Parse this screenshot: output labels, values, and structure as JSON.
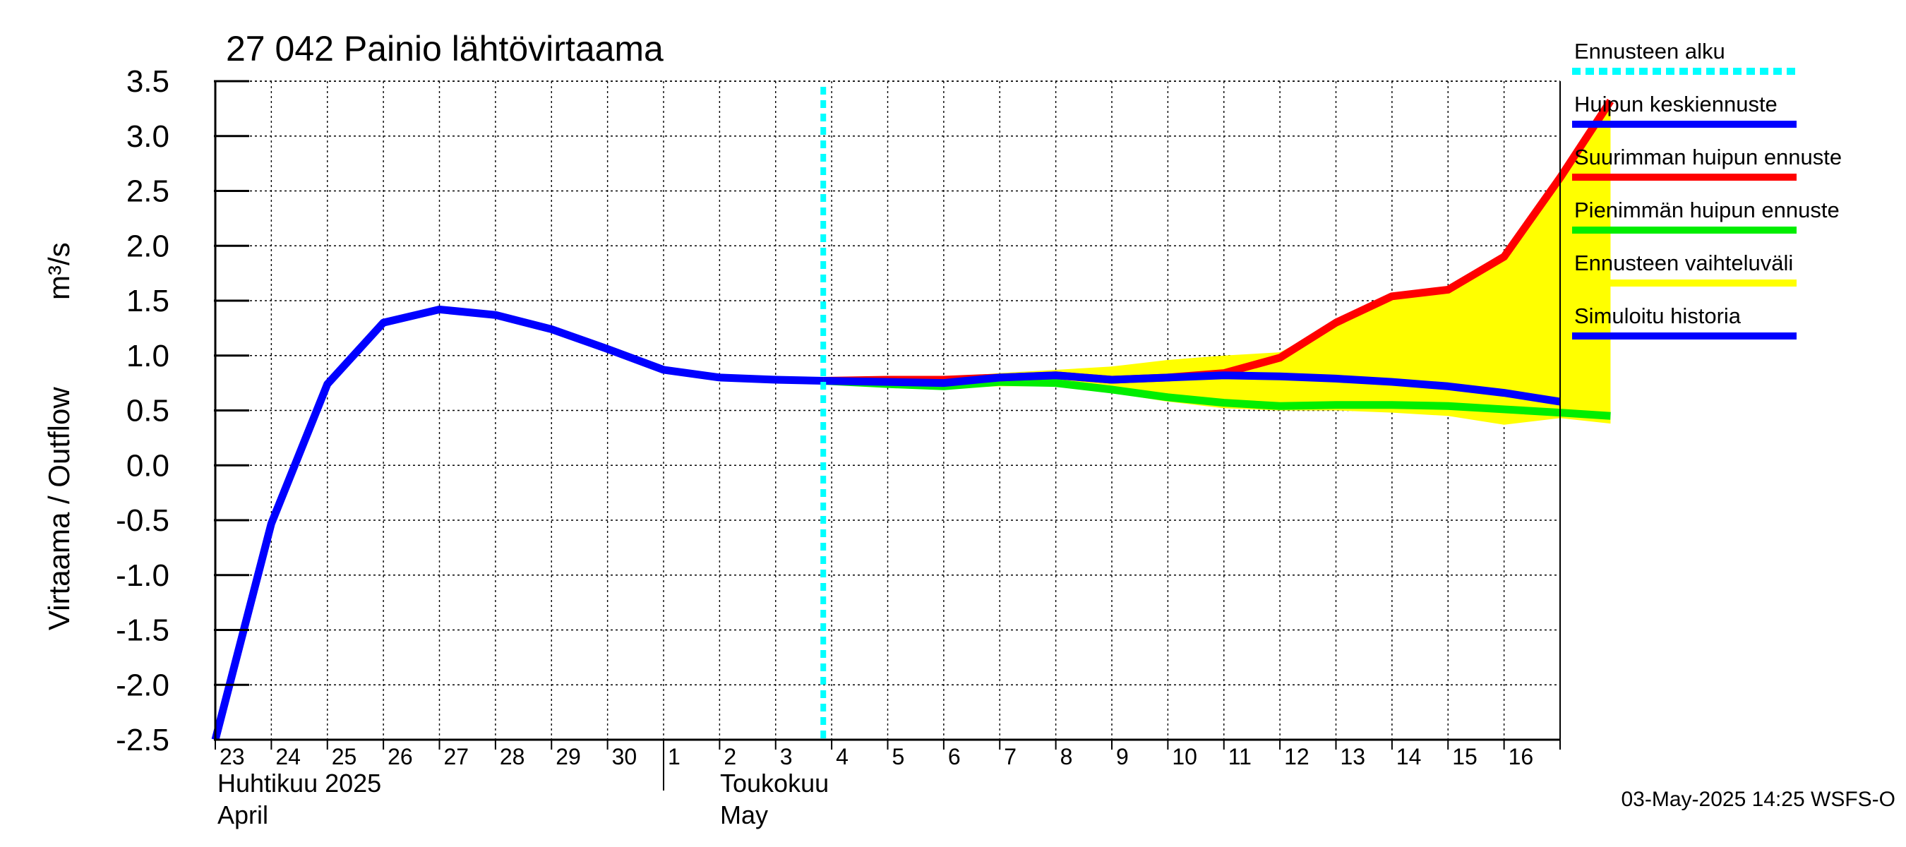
{
  "chart_data": {
    "type": "line",
    "title": "27 042 Painio lähtövirtaama",
    "ylabel": "Virtaama / Outflow",
    "yunit": "m³/s",
    "ylim": [
      -2.5,
      3.5
    ],
    "yticks": [
      3.5,
      3.0,
      2.5,
      2.0,
      1.5,
      1.0,
      0.5,
      0.0,
      -0.5,
      -1.0,
      -1.5,
      -2.0,
      -2.5
    ],
    "ytick_labels": [
      "3.5",
      "3.0",
      "2.5",
      "2.0",
      "1.5",
      "1.0",
      "0.5",
      "0.0",
      "-0.5",
      "-1.0",
      "-1.5",
      "-2.0",
      "-2.5"
    ],
    "x_days": [
      "23",
      "24",
      "25",
      "26",
      "27",
      "28",
      "29",
      "30",
      "1",
      "2",
      "3",
      "4",
      "5",
      "6",
      "7",
      "8",
      "9",
      "10",
      "11",
      "12",
      "13",
      "14",
      "15",
      "16"
    ],
    "month_labels": [
      {
        "fi": "Huhtikuu  2025",
        "en": "April"
      },
      {
        "fi": "Toukokuu",
        "en": "May"
      }
    ],
    "forecast_start_day": 10.85,
    "series": [
      {
        "name": "Simuloitu historia",
        "color": "#0000ff",
        "x": [
          0,
          1,
          2,
          3,
          4,
          5,
          6,
          7,
          8,
          9,
          10,
          10.85
        ],
        "values": [
          -2.5,
          -0.53,
          0.74,
          1.3,
          1.42,
          1.37,
          1.24,
          1.06,
          0.87,
          0.8,
          0.78,
          0.77
        ]
      },
      {
        "name": "Huipun keskiennuste",
        "color": "#0000ff",
        "x": [
          10.85,
          12,
          13,
          14,
          15,
          16,
          17,
          18,
          19,
          20,
          21,
          22,
          23,
          24
        ],
        "values": [
          0.77,
          0.76,
          0.75,
          0.8,
          0.82,
          0.78,
          0.8,
          0.82,
          0.81,
          0.79,
          0.76,
          0.72,
          0.66,
          0.58
        ]
      },
      {
        "name": "Suurimman huipun ennuste",
        "color": "#ff0000",
        "x": [
          10.85,
          12,
          13,
          14,
          15,
          16,
          17,
          18,
          19,
          20,
          21,
          22,
          23,
          24,
          24.9
        ],
        "values": [
          0.77,
          0.78,
          0.78,
          0.8,
          0.82,
          0.78,
          0.8,
          0.84,
          0.98,
          1.3,
          1.54,
          1.6,
          1.9,
          2.62,
          3.32
        ]
      },
      {
        "name": "Pienimmän huipun ennuste",
        "color": "#00ee00",
        "x": [
          10.85,
          12,
          13,
          14,
          15,
          16,
          17,
          18,
          19,
          20,
          21,
          22,
          23,
          24,
          24.9
        ],
        "values": [
          0.77,
          0.74,
          0.72,
          0.76,
          0.75,
          0.69,
          0.62,
          0.57,
          0.54,
          0.55,
          0.55,
          0.54,
          0.51,
          0.48,
          0.45
        ]
      }
    ],
    "range_band": {
      "name": "Ennusteen vaihteluväli",
      "color": "#ffff00",
      "x": [
        10.85,
        12,
        13,
        14,
        15,
        16,
        17,
        18,
        19,
        20,
        21,
        22,
        23,
        24,
        24.9
      ],
      "upper": [
        0.77,
        0.79,
        0.8,
        0.84,
        0.87,
        0.9,
        0.96,
        1.0,
        1.03,
        1.3,
        1.54,
        1.6,
        1.9,
        2.62,
        3.32
      ],
      "lower": [
        0.77,
        0.72,
        0.7,
        0.72,
        0.72,
        0.66,
        0.58,
        0.52,
        0.5,
        0.5,
        0.48,
        0.45,
        0.37,
        0.43,
        0.38
      ]
    },
    "legend": [
      {
        "label": "Ennusteen alku",
        "color": "#00ffff",
        "style": "dotted"
      },
      {
        "label": "Huipun keskiennuste",
        "color": "#0000ff",
        "style": "solid"
      },
      {
        "label": "Suurimman huipun ennuste",
        "color": "#ff0000",
        "style": "solid"
      },
      {
        "label": "Pienimmän huipun ennuste",
        "color": "#00ee00",
        "style": "solid"
      },
      {
        "label": "Ennusteen vaihteluväli",
        "color": "#ffff00",
        "style": "solid"
      },
      {
        "label": "Simuloitu historia",
        "color": "#0000ff",
        "style": "solid"
      }
    ],
    "footer": "03-May-2025 14:25 WSFS-O"
  }
}
